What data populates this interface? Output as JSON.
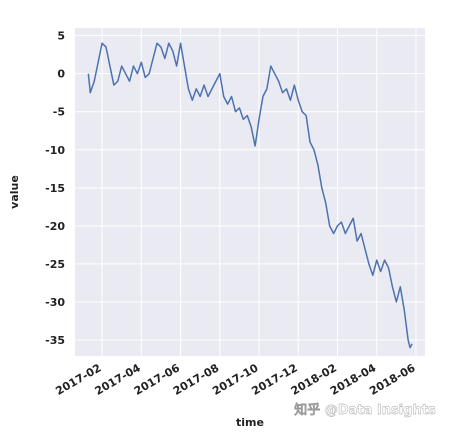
{
  "chart_data": {
    "type": "line",
    "x_label": "time",
    "y_label": "value",
    "annotation": "知乎 @Data Insights",
    "x": [
      0.3,
      0.4,
      0.6,
      0.8,
      1.0,
      1.2,
      1.4,
      1.6,
      1.8,
      2.0,
      2.2,
      2.4,
      2.6,
      2.8,
      3.0,
      3.2,
      3.4,
      3.6,
      3.8,
      4.0,
      4.2,
      4.4,
      4.6,
      4.8,
      5.0,
      5.2,
      5.4,
      5.6,
      5.8,
      6.0,
      6.2,
      6.4,
      6.6,
      6.8,
      7.0,
      7.2,
      7.4,
      7.6,
      7.8,
      8.0,
      8.2,
      8.4,
      8.6,
      8.8,
      9.0,
      9.2,
      9.4,
      9.6,
      9.8,
      10.0,
      10.2,
      10.4,
      10.6,
      10.8,
      11.0,
      11.2,
      11.4,
      11.6,
      11.8,
      12.0,
      12.2,
      12.4,
      12.6,
      12.8,
      13.0,
      13.2,
      13.4,
      13.6,
      13.8,
      14.0,
      14.2,
      14.4,
      14.6,
      14.8,
      15.0,
      15.2,
      15.4,
      15.6,
      15.8,
      16.0,
      16.2,
      16.4,
      16.6,
      16.7,
      16.8
    ],
    "series": [
      {
        "color": "#4c72b0",
        "values": [
          0,
          -2.5,
          -1,
          1.5,
          4,
          3.5,
          1,
          -1.5,
          -1,
          1,
          0,
          -1,
          1,
          0,
          1.5,
          -0.5,
          0,
          2,
          4,
          3.5,
          2,
          4,
          3,
          1,
          4,
          1,
          -2,
          -3.5,
          -2,
          -3,
          -1.5,
          -3,
          -2,
          -1,
          0,
          -3,
          -4,
          -3,
          -5,
          -4.5,
          -6,
          -5.5,
          -7,
          -9.5,
          -6,
          -3,
          -2,
          1,
          0,
          -1,
          -2.5,
          -2,
          -3.5,
          -1.5,
          -3.5,
          -5,
          -5.5,
          -9,
          -10,
          -12,
          -15,
          -17,
          -20,
          -21,
          -20,
          -19.5,
          -21,
          -20,
          -19,
          -22,
          -21,
          -23,
          -25,
          -26.5,
          -24.5,
          -26,
          -24.5,
          -25.5,
          -28,
          -30,
          -28,
          -31,
          -35,
          -36,
          -35.5
        ]
      }
    ],
    "xlim": [
      -0.38,
      17.46
    ],
    "ylim": [
      -37.1,
      6.0
    ],
    "xticks": [
      {
        "value": 1,
        "label": "2017-02"
      },
      {
        "value": 3,
        "label": "2017-04"
      },
      {
        "value": 5,
        "label": "2017-06"
      },
      {
        "value": 7,
        "label": "2017-08"
      },
      {
        "value": 9,
        "label": "2017-10"
      },
      {
        "value": 11,
        "label": "2017-12"
      },
      {
        "value": 13,
        "label": "2018-02"
      },
      {
        "value": 15,
        "label": "2018-04"
      },
      {
        "value": 17,
        "label": "2018-06"
      }
    ],
    "yticks": [
      5,
      0,
      -5,
      -10,
      -15,
      -20,
      -25,
      -30,
      -35
    ],
    "grid": true,
    "background": "#eaeaf2"
  }
}
